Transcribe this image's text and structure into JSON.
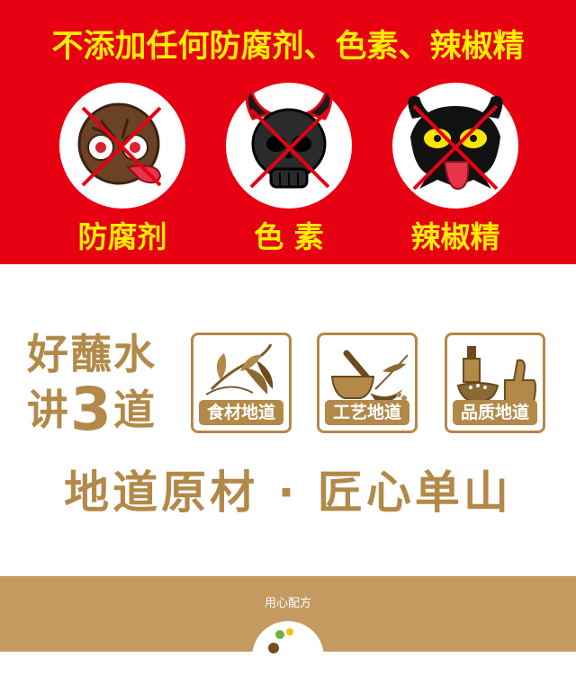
{
  "banner": {
    "heading": "不添加任何防腐剂、色素、辣椒精",
    "badges": [
      {
        "label": "防腐剂",
        "icon": "preservative-monster-icon"
      },
      {
        "label": "色 素",
        "icon": "pigment-skull-icon"
      },
      {
        "label": "辣椒精",
        "icon": "chili-extract-devil-icon"
      }
    ]
  },
  "feature": {
    "slogan_line1": "好蘸水",
    "slogan_line2_prefix": "讲",
    "slogan_line2_number": "3",
    "slogan_line2_suffix": "道",
    "tiles": [
      {
        "label": "食材地道",
        "icon": "chili-plant-icon"
      },
      {
        "label": "工艺地道",
        "icon": "mortar-pestle-icon"
      },
      {
        "label": "品质地道",
        "icon": "thumbs-up-bowl-icon"
      }
    ],
    "headline": "地道原材 · 匠心单山"
  },
  "footer": {
    "title": "用心配方"
  },
  "colors": {
    "banner_red": "#e60012",
    "banner_yellow": "#ffed00",
    "brand_gold": "#b28948",
    "footer_tan": "#c49a60"
  }
}
